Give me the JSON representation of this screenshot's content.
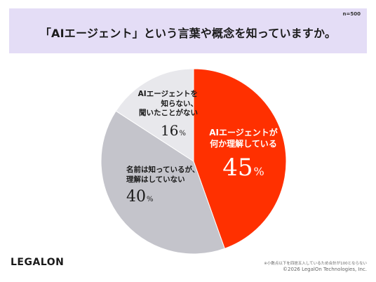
{
  "header": {
    "sample_size": "n=500",
    "title": "「AIエージェント」という言葉や概念を知っていますか。"
  },
  "chart_data": {
    "type": "pie",
    "start_angle_deg": 0,
    "direction": "clockwise",
    "slices": [
      {
        "label_lines": [
          "AIエージェントが",
          "何か理解している"
        ],
        "value": 45,
        "unit": "%",
        "color": "#ff3000"
      },
      {
        "label_lines": [
          "名前は知っているが、",
          "理解はしていない"
        ],
        "value": 40,
        "unit": "%",
        "color": "#c4c4cb"
      },
      {
        "label_lines": [
          "AIエージェントを",
          "知らない、",
          "聞いたことがない"
        ],
        "value": 16,
        "unit": "%",
        "color": "#e8e8ec"
      }
    ]
  },
  "footer": {
    "logo": "LEGALON",
    "note": "※小数点以下を四捨五入しているため合計が100とならない",
    "copyright": "©2026 LegalOn Technologies, Inc."
  }
}
